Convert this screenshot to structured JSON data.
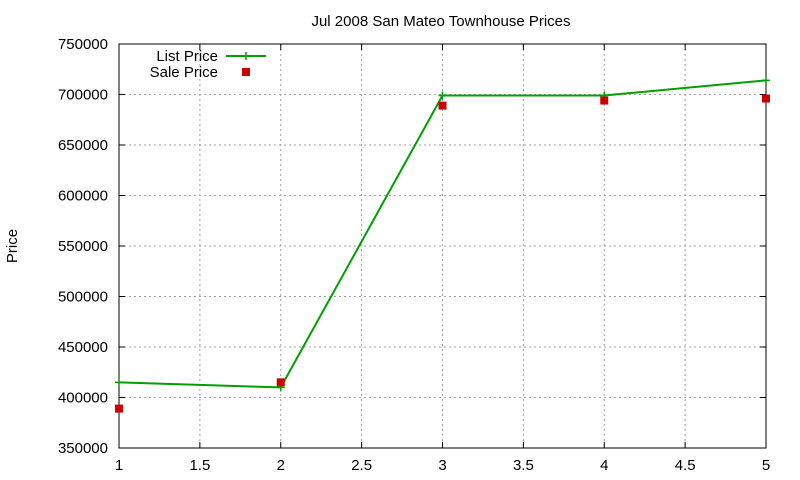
{
  "chart_data": {
    "type": "line",
    "title": "Jul 2008 San Mateo Townhouse Prices",
    "xlabel": "",
    "ylabel": "Price",
    "xlim": [
      1,
      5
    ],
    "ylim": [
      350000,
      750000
    ],
    "x_ticks": [
      "1",
      "1.5",
      "2",
      "2.5",
      "3",
      "3.5",
      "4",
      "4.5",
      "5"
    ],
    "y_ticks": [
      "350000",
      "400000",
      "450000",
      "500000",
      "550000",
      "600000",
      "650000",
      "700000",
      "750000"
    ],
    "grid": true,
    "legend_position": "top-left",
    "series": [
      {
        "name": "List Price",
        "style": "line+cross",
        "color": "#00a000",
        "x": [
          1,
          2,
          3,
          4,
          5
        ],
        "y": [
          415000,
          410000,
          699000,
          699000,
          714000
        ]
      },
      {
        "name": "Sale Price",
        "style": "square",
        "color": "#cc0000",
        "x": [
          1,
          2,
          3,
          4,
          5
        ],
        "y": [
          389000,
          415000,
          689000,
          694000,
          696000
        ]
      }
    ]
  }
}
